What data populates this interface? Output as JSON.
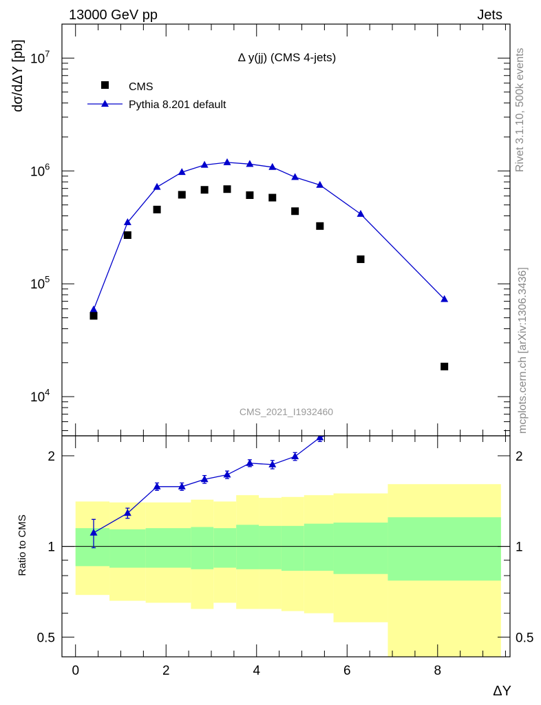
{
  "header": {
    "left": "13000 GeV pp",
    "right": "Jets"
  },
  "side_labels": {
    "rivet": "Rivet 3.1.10,  500k events",
    "mcplots": "mcplots.cern.ch [arXiv:1306.3436]"
  },
  "watermark": "CMS_2021_I1932460",
  "chart_data": [
    {
      "type": "scatter",
      "title": "Δ y(jj) (CMS 4-jets)",
      "xlabel": "ΔY",
      "ylabel": "dσ/dΔY [pb]",
      "yscale": "log",
      "xlim": [
        -0.3,
        9.6
      ],
      "ylim": [
        4500,
        20000000
      ],
      "y_tick_labels": [
        {
          "value": 10000,
          "base": "10",
          "exp": "4"
        },
        {
          "value": 100000,
          "base": "10",
          "exp": "5"
        },
        {
          "value": 1000000,
          "base": "10",
          "exp": "6"
        },
        {
          "value": 10000000,
          "base": "10",
          "exp": "7"
        }
      ],
      "legend_placement": "top-left",
      "series": [
        {
          "name": "CMS",
          "style": "square-markers",
          "color": "#000000",
          "x": [
            0.4,
            1.15,
            1.8,
            2.35,
            2.85,
            3.35,
            3.85,
            4.35,
            4.85,
            5.4,
            6.3,
            8.15
          ],
          "y": [
            52000,
            270000,
            455000,
            615000,
            680000,
            690000,
            610000,
            580000,
            440000,
            325000,
            165000,
            18500
          ]
        },
        {
          "name": "Pythia 8.201 default",
          "style": "line-triangles",
          "color": "#0000cc",
          "x": [
            0.4,
            1.15,
            1.8,
            2.35,
            2.85,
            3.35,
            3.85,
            4.35,
            4.85,
            5.4,
            6.3,
            8.15
          ],
          "y": [
            59000,
            350000,
            720000,
            975000,
            1130000,
            1190000,
            1150000,
            1080000,
            880000,
            750000,
            415000,
            73000
          ]
        }
      ]
    },
    {
      "type": "line",
      "ylabel": "Ratio to CMS",
      "xlabel": "ΔY",
      "yscale": "log",
      "xlim": [
        -0.3,
        9.6
      ],
      "ylim": [
        0.43,
        2.33
      ],
      "x_ticks": [
        0,
        2,
        4,
        6,
        8
      ],
      "y_ticks": [
        0.5,
        1,
        2
      ],
      "bands": {
        "edges": [
          0,
          0.75,
          1.55,
          2.55,
          3.05,
          3.55,
          4.05,
          4.55,
          5.05,
          5.7,
          6.9,
          9.4
        ],
        "stat_syst_lo": [
          0.69,
          0.66,
          0.65,
          0.62,
          0.65,
          0.62,
          0.62,
          0.61,
          0.6,
          0.56,
          0.43
        ],
        "stat_syst_hi": [
          1.41,
          1.4,
          1.4,
          1.43,
          1.41,
          1.48,
          1.45,
          1.46,
          1.48,
          1.5,
          1.61
        ],
        "stat_lo": [
          0.86,
          0.85,
          0.85,
          0.84,
          0.85,
          0.84,
          0.84,
          0.83,
          0.83,
          0.81,
          0.77
        ],
        "stat_hi": [
          1.15,
          1.14,
          1.15,
          1.16,
          1.15,
          1.18,
          1.17,
          1.17,
          1.19,
          1.2,
          1.25
        ],
        "outer_color": "#ffff99",
        "inner_color": "#99ff99"
      },
      "series": [
        {
          "name": "Pythia 8.201 default",
          "color": "#0000cc",
          "x": [
            0.4,
            1.15,
            1.8,
            2.35,
            2.85,
            3.35,
            3.85,
            4.35,
            4.85,
            5.4,
            6.3
          ],
          "y": [
            1.11,
            1.29,
            1.58,
            1.58,
            1.67,
            1.73,
            1.89,
            1.87,
            1.99,
            2.3,
            2.55
          ],
          "yerr": [
            0.12,
            0.05,
            0.045,
            0.045,
            0.05,
            0.05,
            0.05,
            0.06,
            0.06,
            0.07,
            0.08
          ]
        }
      ]
    }
  ]
}
